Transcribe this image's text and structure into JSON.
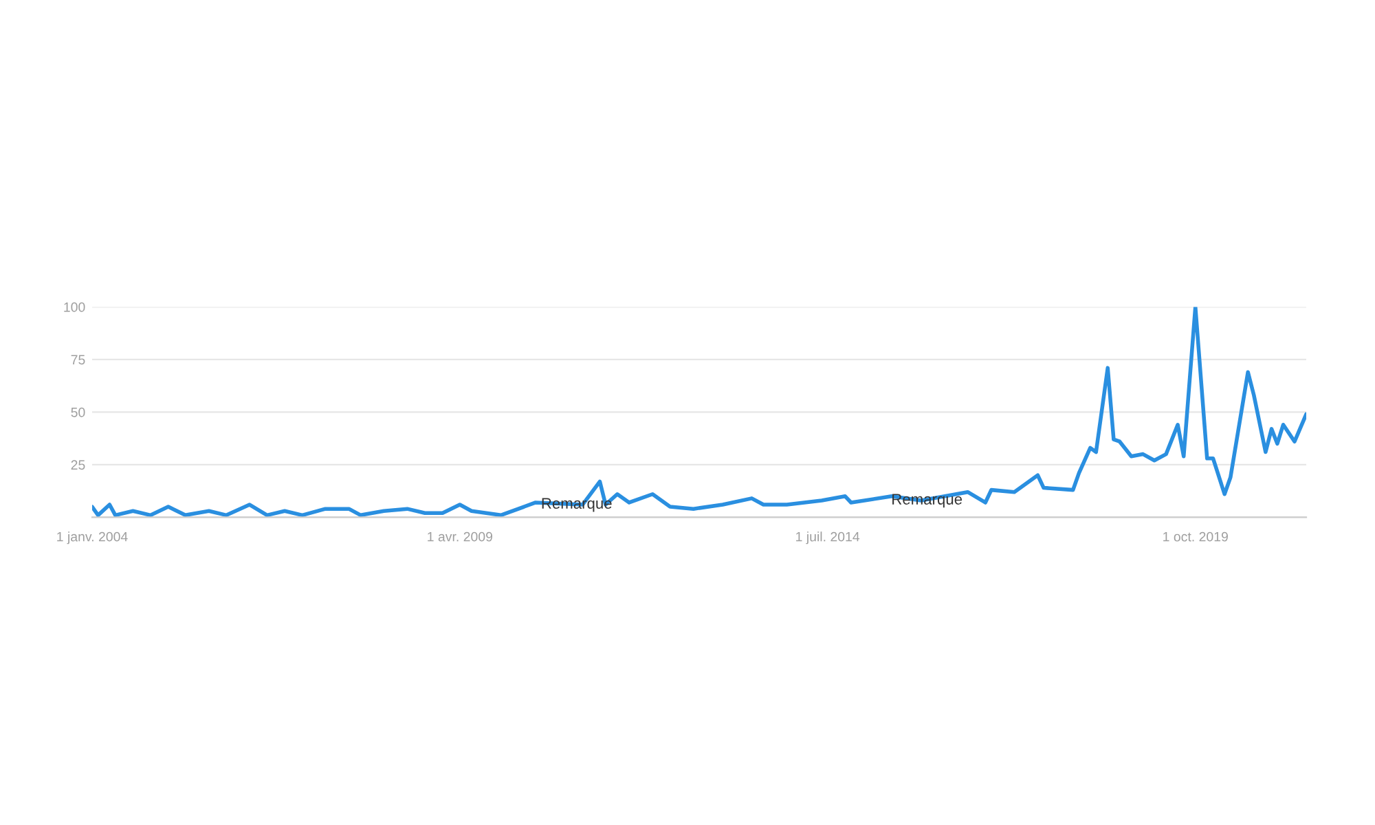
{
  "chart_data": {
    "type": "line",
    "x": [
      "2004-01",
      "2004-02",
      "2004-04",
      "2004-05",
      "2004-08",
      "2004-11",
      "2005-02",
      "2005-05",
      "2005-09",
      "2005-12",
      "2006-04",
      "2006-07",
      "2006-10",
      "2007-01",
      "2007-05",
      "2007-09",
      "2007-11",
      "2008-03",
      "2008-07",
      "2008-10",
      "2009-01",
      "2009-04",
      "2009-06",
      "2009-11",
      "2010-05",
      "2011-01",
      "2011-04",
      "2011-05",
      "2011-07",
      "2011-09",
      "2012-01",
      "2012-04",
      "2012-08",
      "2013-01",
      "2013-06",
      "2013-08",
      "2013-12",
      "2014-06",
      "2014-10",
      "2014-11",
      "2015-06",
      "2015-11",
      "2016-07",
      "2016-10",
      "2016-11",
      "2017-03",
      "2017-07",
      "2017-08",
      "2018-01",
      "2018-02",
      "2018-04",
      "2018-05",
      "2018-07",
      "2018-08",
      "2018-09",
      "2018-11",
      "2019-01",
      "2019-03",
      "2019-05",
      "2019-07",
      "2019-08",
      "2019-10",
      "2019-12",
      "2020-01",
      "2020-03",
      "2020-04",
      "2020-07",
      "2020-08",
      "2020-10",
      "2020-11",
      "2020-12",
      "2021-01",
      "2021-03",
      "2021-05"
    ],
    "series": [
      {
        "color": "#2a8fe0",
        "values": [
          5,
          1,
          6,
          1,
          3,
          1,
          5,
          1,
          3,
          1,
          6,
          1,
          3,
          1,
          4,
          4,
          1,
          3,
          4,
          2,
          2,
          6,
          3,
          1,
          7,
          6,
          17,
          6,
          11,
          7,
          11,
          5,
          4,
          6,
          9,
          6,
          6,
          8,
          10,
          7,
          10,
          8,
          12,
          7,
          13,
          12,
          20,
          14,
          13,
          21,
          33,
          31,
          71,
          37,
          36,
          29,
          30,
          27,
          30,
          44,
          29,
          100,
          28,
          28,
          11,
          19,
          69,
          58,
          31,
          42,
          35,
          44,
          36,
          49
        ]
      }
    ],
    "xlim": [
      "2004-01",
      "2021-05"
    ],
    "xticks": [
      {
        "value": "2004-01-01",
        "label": "1 janv. 2004"
      },
      {
        "value": "2009-04-01",
        "label": "1 avr. 2009"
      },
      {
        "value": "2014-07-01",
        "label": "1 juil. 2014"
      },
      {
        "value": "2019-10-01",
        "label": "1 oct. 2019"
      }
    ],
    "ylim": [
      0,
      100
    ],
    "yticks": [
      {
        "value": 0,
        "label": null
      },
      25,
      50,
      75,
      100
    ],
    "grid": "y",
    "annotations": [
      {
        "text": "Remarque",
        "x": "2010-12",
        "y": 6
      },
      {
        "text": "Remarque",
        "x": "2015-12",
        "y": 8
      }
    ]
  }
}
